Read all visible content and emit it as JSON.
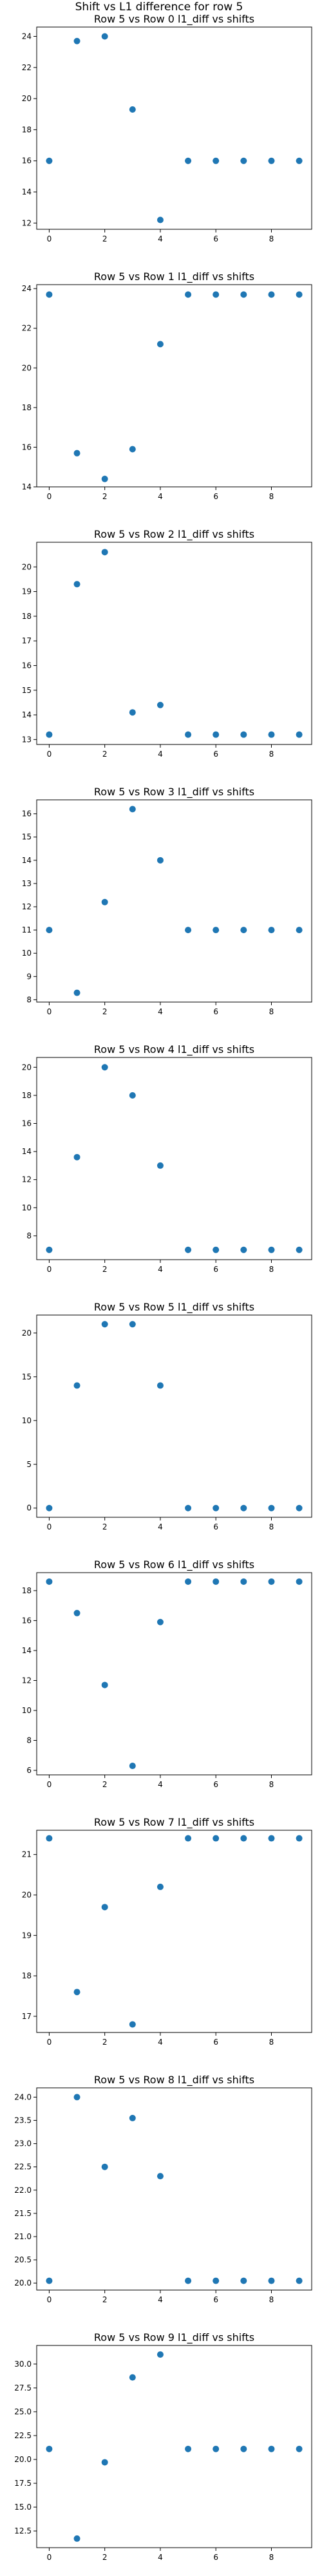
{
  "figure_title": "Shift vs L1 difference for row 5",
  "marker_color": "#1f77b4",
  "chart_data": [
    {
      "type": "scatter",
      "title": "Row 5 vs Row 0 l1_diff vs shifts",
      "x": [
        0,
        1,
        2,
        3,
        4,
        5,
        6,
        7,
        8,
        9
      ],
      "y": [
        16.0,
        23.7,
        24.0,
        19.3,
        12.2,
        16.0,
        16.0,
        16.0,
        16.0,
        16.0
      ],
      "xlim": [
        -0.45,
        9.45
      ],
      "ylim": [
        11.6,
        24.6
      ],
      "xticks": [
        0,
        2,
        4,
        6,
        8
      ],
      "yticks": [
        12,
        14,
        16,
        18,
        20,
        22,
        24
      ],
      "ytick_labels": [
        "12",
        "14",
        "16",
        "18",
        "20",
        "22",
        "24"
      ]
    },
    {
      "type": "scatter",
      "title": "Row 5 vs Row 1 l1_diff vs shifts",
      "x": [
        0,
        1,
        2,
        3,
        4,
        5,
        6,
        7,
        8,
        9
      ],
      "y": [
        23.7,
        15.7,
        14.4,
        15.9,
        21.2,
        23.7,
        23.7,
        23.7,
        23.7,
        23.7
      ],
      "xlim": [
        -0.45,
        9.45
      ],
      "ylim": [
        14.0,
        24.2
      ],
      "xticks": [
        0,
        2,
        4,
        6,
        8
      ],
      "yticks": [
        14,
        16,
        18,
        20,
        22,
        24
      ],
      "ytick_labels": [
        "14",
        "16",
        "18",
        "20",
        "22",
        "24"
      ]
    },
    {
      "type": "scatter",
      "title": "Row 5 vs Row 2 l1_diff vs shifts",
      "x": [
        0,
        1,
        2,
        3,
        4,
        5,
        6,
        7,
        8,
        9
      ],
      "y": [
        13.2,
        19.3,
        20.6,
        14.1,
        14.4,
        13.2,
        13.2,
        13.2,
        13.2,
        13.2
      ],
      "xlim": [
        -0.45,
        9.45
      ],
      "ylim": [
        12.8,
        21.0
      ],
      "xticks": [
        0,
        2,
        4,
        6,
        8
      ],
      "yticks": [
        13,
        14,
        15,
        16,
        17,
        18,
        19,
        20
      ],
      "ytick_labels": [
        "13",
        "14",
        "15",
        "16",
        "17",
        "18",
        "19",
        "20"
      ]
    },
    {
      "type": "scatter",
      "title": "Row 5 vs Row 3 l1_diff vs shifts",
      "x": [
        0,
        1,
        2,
        3,
        4,
        5,
        6,
        7,
        8,
        9
      ],
      "y": [
        11.0,
        8.3,
        12.2,
        16.2,
        14.0,
        11.0,
        11.0,
        11.0,
        11.0,
        11.0
      ],
      "xlim": [
        -0.45,
        9.45
      ],
      "ylim": [
        7.9,
        16.6
      ],
      "xticks": [
        0,
        2,
        4,
        6,
        8
      ],
      "yticks": [
        8,
        9,
        10,
        11,
        12,
        13,
        14,
        15,
        16
      ],
      "ytick_labels": [
        "8",
        "9",
        "10",
        "11",
        "12",
        "13",
        "14",
        "15",
        "16"
      ]
    },
    {
      "type": "scatter",
      "title": "Row 5 vs Row 4 l1_diff vs shifts",
      "x": [
        0,
        1,
        2,
        3,
        4,
        5,
        6,
        7,
        8,
        9
      ],
      "y": [
        7.0,
        13.6,
        20.0,
        18.0,
        13.0,
        7.0,
        7.0,
        7.0,
        7.0,
        7.0
      ],
      "xlim": [
        -0.45,
        9.45
      ],
      "ylim": [
        6.3,
        20.7
      ],
      "xticks": [
        0,
        2,
        4,
        6,
        8
      ],
      "yticks": [
        8,
        10,
        12,
        14,
        16,
        18,
        20
      ],
      "ytick_labels": [
        "8",
        "10",
        "12",
        "14",
        "16",
        "18",
        "20"
      ]
    },
    {
      "type": "scatter",
      "title": "Row 5 vs Row 5 l1_diff vs shifts",
      "x": [
        0,
        1,
        2,
        3,
        4,
        5,
        6,
        7,
        8,
        9
      ],
      "y": [
        0,
        14,
        21,
        21,
        14,
        0,
        0,
        0,
        0,
        0
      ],
      "xlim": [
        -0.45,
        9.45
      ],
      "ylim": [
        -1.05,
        22.05
      ],
      "xticks": [
        0,
        2,
        4,
        6,
        8
      ],
      "yticks": [
        0,
        5,
        10,
        15,
        20
      ],
      "ytick_labels": [
        "0",
        "5",
        "10",
        "15",
        "20"
      ]
    },
    {
      "type": "scatter",
      "title": "Row 5 vs Row 6 l1_diff vs shifts",
      "x": [
        0,
        1,
        2,
        3,
        4,
        5,
        6,
        7,
        8,
        9
      ],
      "y": [
        18.6,
        16.5,
        11.7,
        6.3,
        15.9,
        18.6,
        18.6,
        18.6,
        18.6,
        18.6
      ],
      "xlim": [
        -0.45,
        9.45
      ],
      "ylim": [
        5.7,
        19.2
      ],
      "xticks": [
        0,
        2,
        4,
        6,
        8
      ],
      "yticks": [
        6,
        8,
        10,
        12,
        14,
        16,
        18
      ],
      "ytick_labels": [
        "6",
        "8",
        "10",
        "12",
        "14",
        "16",
        "18"
      ]
    },
    {
      "type": "scatter",
      "title": "Row 5 vs Row 7 l1_diff vs shifts",
      "x": [
        0,
        1,
        2,
        3,
        4,
        5,
        6,
        7,
        8,
        9
      ],
      "y": [
        21.4,
        17.6,
        19.7,
        16.8,
        20.2,
        21.4,
        21.4,
        21.4,
        21.4,
        21.4
      ],
      "xlim": [
        -0.45,
        9.45
      ],
      "ylim": [
        16.6,
        21.6
      ],
      "xticks": [
        0,
        2,
        4,
        6,
        8
      ],
      "yticks": [
        17,
        18,
        19,
        20,
        21
      ],
      "ytick_labels": [
        "17",
        "18",
        "19",
        "20",
        "21"
      ]
    },
    {
      "type": "scatter",
      "title": "Row 5 vs Row 8 l1_diff vs shifts",
      "x": [
        0,
        1,
        2,
        3,
        4,
        5,
        6,
        7,
        8,
        9
      ],
      "y": [
        20.05,
        24.0,
        22.5,
        23.55,
        22.3,
        20.05,
        20.05,
        20.05,
        20.05,
        20.05
      ],
      "xlim": [
        -0.45,
        9.45
      ],
      "ylim": [
        19.85,
        24.2
      ],
      "xticks": [
        0,
        2,
        4,
        6,
        8
      ],
      "yticks": [
        20.0,
        20.5,
        21.0,
        21.5,
        22.0,
        22.5,
        23.0,
        23.5,
        24.0
      ],
      "ytick_labels": [
        "20.0",
        "20.5",
        "21.0",
        "21.5",
        "22.0",
        "22.5",
        "23.0",
        "23.5",
        "24.0"
      ]
    },
    {
      "type": "scatter",
      "title": "Row 5 vs Row 9 l1_diff vs shifts",
      "x": [
        0,
        1,
        2,
        3,
        4,
        5,
        6,
        7,
        8,
        9
      ],
      "y": [
        21.1,
        11.7,
        19.7,
        28.6,
        31.0,
        21.1,
        21.1,
        21.1,
        21.1,
        21.1
      ],
      "xlim": [
        -0.45,
        9.45
      ],
      "ylim": [
        10.75,
        31.95
      ],
      "xticks": [
        0,
        2,
        4,
        6,
        8
      ],
      "yticks": [
        12.5,
        15.0,
        17.5,
        20.0,
        22.5,
        25.0,
        27.5,
        30.0
      ],
      "ytick_labels": [
        "12.5",
        "15.0",
        "17.5",
        "20.0",
        "22.5",
        "25.0",
        "27.5",
        "30.0"
      ]
    }
  ]
}
